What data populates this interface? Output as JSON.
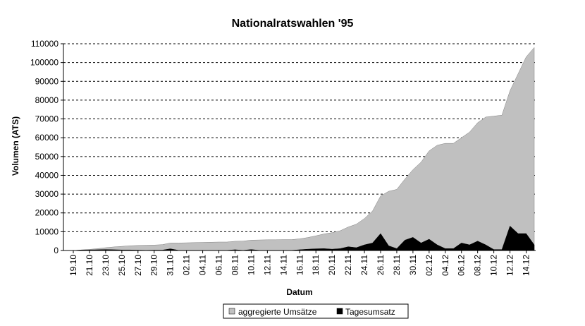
{
  "chart_data": {
    "type": "area",
    "title": "Nationalratswahlen '95",
    "xlabel": "Datum",
    "ylabel": "Volumen (ATS)",
    "ylim": [
      0,
      110000
    ],
    "yticks": [
      0,
      10000,
      20000,
      30000,
      40000,
      50000,
      60000,
      70000,
      80000,
      90000,
      100000,
      110000
    ],
    "grid": "horizontal dashed",
    "legend_position": "bottom",
    "stacking": "overlapping",
    "x": [
      "19.10",
      "20.10",
      "21.10",
      "22.10",
      "23.10",
      "24.10",
      "25.10",
      "26.10",
      "27.10",
      "28.10",
      "29.10",
      "30.10",
      "31.10",
      "01.11",
      "02.11",
      "03.11",
      "04.11",
      "05.11",
      "06.11",
      "07.11",
      "08.11",
      "09.11",
      "10.11",
      "11.11",
      "12.11",
      "13.11",
      "14.11",
      "15.11",
      "16.11",
      "17.11",
      "18.11",
      "19.11",
      "20.11",
      "21.11",
      "22.11",
      "23.11",
      "24.11",
      "25.11",
      "26.11",
      "27.11",
      "28.11",
      "29.11",
      "30.11",
      "01.12",
      "02.12",
      "03.12",
      "04.12",
      "05.12",
      "06.12",
      "07.12",
      "08.12",
      "09.12",
      "10.12",
      "11.12",
      "12.12",
      "13.12",
      "14.12",
      "15.12"
    ],
    "xtick_labels": [
      "19.10",
      "21.10",
      "23.10",
      "25.10",
      "27.10",
      "29.10",
      "31.10",
      "02.11",
      "04.11",
      "06.11",
      "08.11",
      "10.11",
      "12.11",
      "14.11",
      "16.11",
      "18.11",
      "20.11",
      "22.11",
      "24.11",
      "26.11",
      "28.11",
      "30.11",
      "02.12",
      "04.12",
      "06.12",
      "08.12",
      "10.12",
      "12.12",
      "14.12"
    ],
    "series": [
      {
        "name": "aggregierte Umsätze",
        "color": "#c0c0c0",
        "values": [
          0,
          300,
          600,
          1000,
          1500,
          1900,
          2200,
          2500,
          2700,
          2800,
          2900,
          3100,
          4000,
          4000,
          4100,
          4200,
          4300,
          4400,
          4500,
          4500,
          4900,
          5000,
          5500,
          5600,
          5700,
          5700,
          5800,
          5800,
          6200,
          6900,
          7800,
          8800,
          9500,
          10500,
          12500,
          14000,
          17000,
          21000,
          29000,
          31500,
          32500,
          38000,
          43000,
          47000,
          53000,
          56000,
          57000,
          57000,
          60000,
          63000,
          68000,
          71000,
          71500,
          72000,
          85000,
          94000,
          103000,
          108000
        ]
      },
      {
        "name": "Tagesumsatz",
        "color": "#000000",
        "values": [
          0,
          300,
          300,
          400,
          500,
          400,
          300,
          300,
          200,
          100,
          200,
          200,
          900,
          100,
          100,
          100,
          100,
          100,
          100,
          100,
          400,
          100,
          500,
          100,
          100,
          100,
          100,
          100,
          400,
          700,
          900,
          1000,
          700,
          1000,
          2000,
          1500,
          3000,
          4000,
          9000,
          2500,
          1000,
          5500,
          7000,
          4000,
          6000,
          3000,
          1000,
          1000,
          4000,
          3000,
          5000,
          3000,
          500,
          500,
          13000,
          9000,
          9000,
          3000
        ]
      }
    ]
  }
}
